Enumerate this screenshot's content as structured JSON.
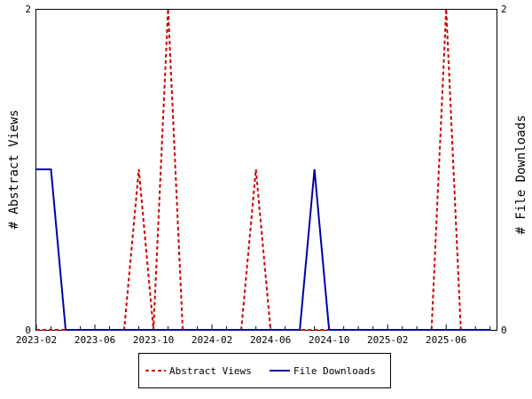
{
  "chart_data": {
    "type": "line",
    "x": [
      "2023-02",
      "2023-03",
      "2023-04",
      "2023-05",
      "2023-06",
      "2023-07",
      "2023-08",
      "2023-09",
      "2023-10",
      "2023-11",
      "2023-12",
      "2024-01",
      "2024-02",
      "2024-03",
      "2024-04",
      "2024-05",
      "2024-06",
      "2024-07",
      "2024-08",
      "2024-09",
      "2024-10",
      "2024-11",
      "2024-12",
      "2025-01",
      "2025-02",
      "2025-03",
      "2025-04",
      "2025-05",
      "2025-06",
      "2025-07",
      "2025-08",
      "2025-09"
    ],
    "x_tick_labels": [
      "2023-02",
      "2023-06",
      "2023-10",
      "2024-02",
      "2024-06",
      "2024-10",
      "2025-02",
      "2025-06"
    ],
    "series": [
      {
        "name": "Abstract Views",
        "axis": "left",
        "color": "#cc0000",
        "dashed": true,
        "values": [
          0,
          0,
          0,
          0,
          0,
          0,
          0,
          1,
          0,
          2,
          0,
          0,
          0,
          0,
          0,
          1,
          0,
          0,
          0,
          0,
          0,
          0,
          0,
          0,
          0,
          0,
          0,
          0,
          2,
          0,
          0,
          0
        ]
      },
      {
        "name": "File Downloads",
        "axis": "right",
        "color": "#0000aa",
        "dashed": false,
        "values": [
          1,
          1,
          0,
          0,
          0,
          0,
          0,
          0,
          0,
          0,
          0,
          0,
          0,
          0,
          0,
          0,
          0,
          0,
          0,
          1,
          0,
          0,
          0,
          0,
          0,
          0,
          0,
          0,
          0,
          0,
          0,
          0
        ]
      }
    ],
    "ylabel_left": "# Abstract Views",
    "ylabel_right": "# File Downloads",
    "ylim": [
      0,
      2
    ],
    "y_tick_labels_left": [
      "0",
      "2"
    ],
    "y_tick_labels_right": [
      "0",
      "2"
    ],
    "grid": false,
    "legend_position": "bottom"
  },
  "legend": {
    "abstract_views": "Abstract Views",
    "file_downloads": "File Downloads"
  }
}
